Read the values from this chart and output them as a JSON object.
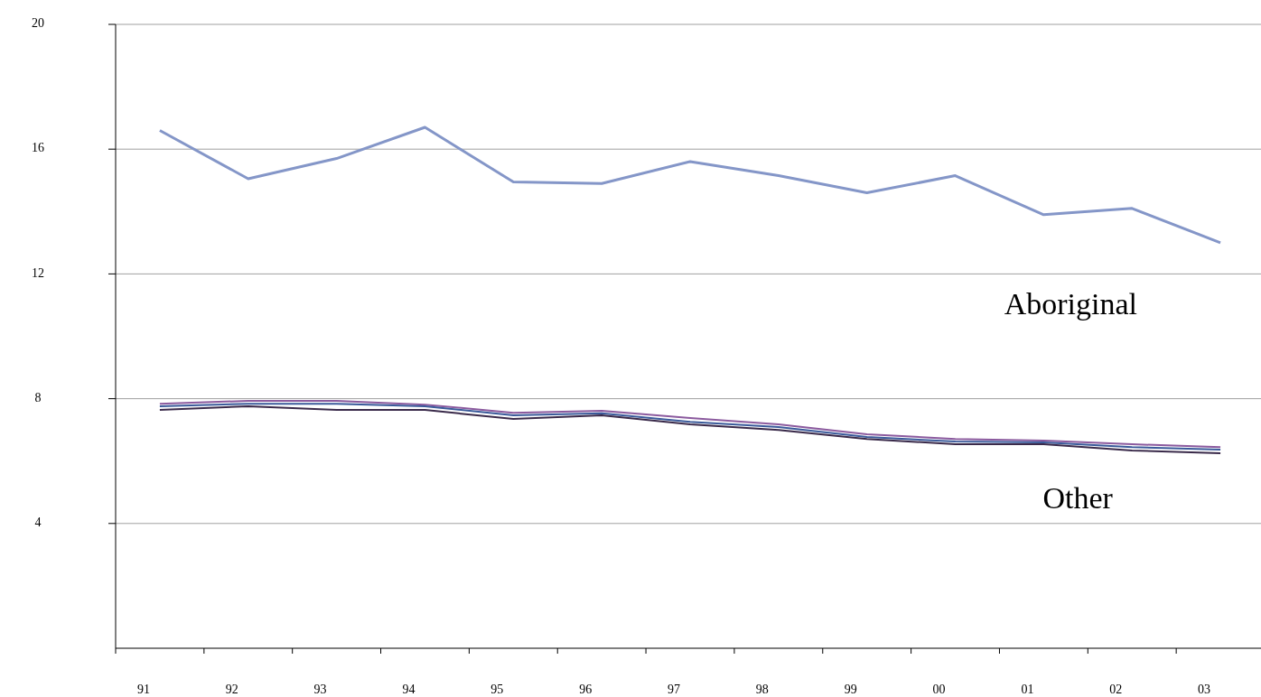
{
  "chart_data": {
    "type": "line",
    "categories": [
      "91",
      "92",
      "93",
      "94",
      "95",
      "96",
      "97",
      "98",
      "99",
      "00",
      "01",
      "02",
      "03"
    ],
    "series": [
      {
        "name": "Aboriginal",
        "color": "#8496c8",
        "values": [
          16.6,
          15.05,
          15.7,
          16.7,
          14.95,
          14.9,
          15.6,
          15.15,
          14.6,
          15.15,
          13.9,
          14.1,
          13.0
        ]
      },
      {
        "color": "#8b5a9e",
        "values": [
          7.84,
          7.93,
          7.93,
          7.81,
          7.55,
          7.61,
          7.38,
          7.18,
          6.86,
          6.71,
          6.66,
          6.54,
          6.45
        ]
      },
      {
        "color": "#3a5a9a",
        "values": [
          7.76,
          7.84,
          7.84,
          7.76,
          7.47,
          7.53,
          7.26,
          7.09,
          6.77,
          6.63,
          6.6,
          6.45,
          6.37
        ]
      },
      {
        "color": "#3a2a4a",
        "values": [
          7.64,
          7.76,
          7.64,
          7.64,
          7.35,
          7.47,
          7.18,
          7.0,
          6.71,
          6.54,
          6.54,
          6.34,
          6.25
        ]
      }
    ],
    "annotations": [
      "Other"
    ],
    "ylim": [
      0,
      20
    ],
    "yticks": [
      4,
      8,
      12,
      16,
      20
    ],
    "grid": "y",
    "legend": false,
    "marker": "none",
    "line_style": "solid"
  }
}
